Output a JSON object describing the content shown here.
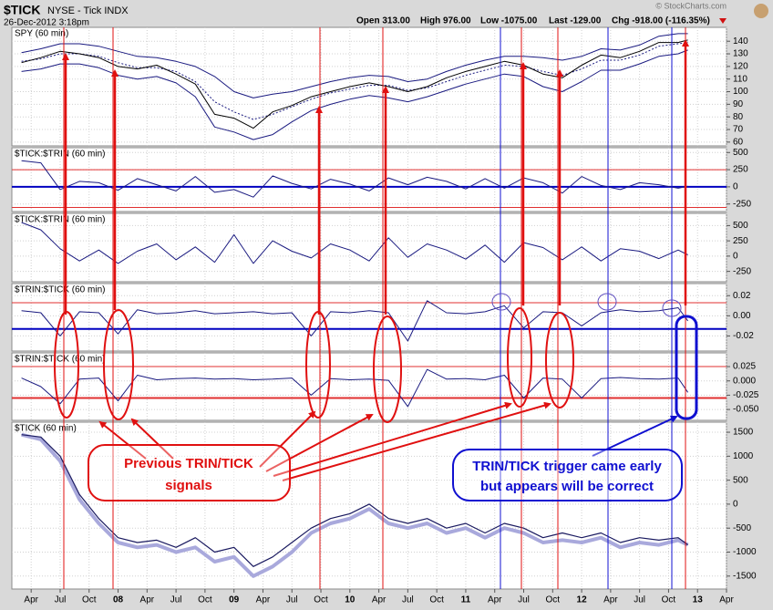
{
  "header": {
    "symbol": "$TICK",
    "name": "NYSE - Tick INDX",
    "date": "26-Dec-2012 3:18pm",
    "open": "Open 313.00",
    "high": "High 976.00",
    "low": "Low -1075.00",
    "last": "Last -129.00",
    "chg": "Chg -918.00 (-116.35%)",
    "credit": "© StockCharts.com"
  },
  "annotations": {
    "left": [
      "Previous TRIN/TICK",
      "signals"
    ],
    "right": [
      "TRIN/TICK trigger came early",
      "but appears will be correct"
    ]
  },
  "chart_data": [
    {
      "type": "line",
      "title": "SPY (60 min)",
      "xlim": [
        "2007-02",
        "2013-04"
      ],
      "x": [
        "2007-03",
        "2007-05",
        "2007-07",
        "2007-09",
        "2007-11",
        "2008-01",
        "2008-03",
        "2008-05",
        "2008-07",
        "2008-09",
        "2008-11",
        "2009-01",
        "2009-03",
        "2009-05",
        "2009-07",
        "2009-09",
        "2009-11",
        "2010-01",
        "2010-03",
        "2010-05",
        "2010-07",
        "2010-09",
        "2010-11",
        "2011-01",
        "2011-03",
        "2011-05",
        "2011-07",
        "2011-09",
        "2011-11",
        "2012-01",
        "2012-03",
        "2012-05",
        "2012-07",
        "2012-09",
        "2012-11",
        "2012-12"
      ],
      "ylim": [
        57,
        151
      ],
      "yticks": [
        140,
        130,
        120,
        110,
        100,
        90,
        80,
        70,
        60
      ],
      "series": [
        {
          "color": "#1a1a80",
          "values": [
            131,
            134,
            138,
            138,
            136,
            132,
            128,
            127,
            124,
            120,
            112,
            100,
            95,
            98,
            100,
            104,
            108,
            111,
            113,
            112,
            108,
            110,
            116,
            121,
            125,
            128,
            128,
            127,
            125,
            128,
            134,
            133,
            137,
            144,
            146,
            146
          ]
        },
        {
          "color": "#1a1a80",
          "values": [
            116,
            118,
            122,
            122,
            119,
            113,
            110,
            112,
            107,
            96,
            72,
            68,
            62,
            66,
            76,
            85,
            90,
            94,
            97,
            95,
            92,
            96,
            101,
            106,
            110,
            114,
            112,
            104,
            100,
            108,
            117,
            117,
            122,
            128,
            130,
            133
          ]
        },
        {
          "color": "#1a1a80",
          "dash": true,
          "values": [
            124,
            126,
            130,
            130,
            128,
            123,
            119,
            119,
            116,
            108,
            92,
            84,
            78,
            82,
            88,
            94,
            99,
            102,
            105,
            105,
            101,
            103,
            108,
            113,
            117,
            121,
            120,
            116,
            113,
            118,
            125,
            125,
            129,
            136,
            138,
            139
          ]
        },
        {
          "color": "#000000",
          "values": [
            123,
            127,
            132,
            130,
            127,
            120,
            118,
            121,
            114,
            106,
            82,
            79,
            71,
            84,
            89,
            96,
            100,
            104,
            107,
            104,
            100,
            104,
            111,
            116,
            120,
            124,
            121,
            114,
            111,
            121,
            129,
            127,
            132,
            139,
            139,
            141
          ]
        }
      ]
    },
    {
      "type": "line",
      "title": "$TICK:$TRIN (60 min)",
      "xlim": [
        "2007-02",
        "2013-04"
      ],
      "x": [
        "2007-03",
        "2007-05",
        "2007-07",
        "2007-09",
        "2007-11",
        "2008-01",
        "2008-03",
        "2008-05",
        "2008-07",
        "2008-09",
        "2008-11",
        "2009-01",
        "2009-03",
        "2009-05",
        "2009-07",
        "2009-09",
        "2009-11",
        "2010-01",
        "2010-03",
        "2010-05",
        "2010-07",
        "2010-09",
        "2010-11",
        "2011-01",
        "2011-03",
        "2011-05",
        "2011-07",
        "2011-09",
        "2011-11",
        "2012-01",
        "2012-03",
        "2012-05",
        "2012-07",
        "2012-09",
        "2012-11",
        "2012-12"
      ],
      "ylim": [
        -360,
        570
      ],
      "yticks": [
        500,
        250,
        0,
        -250
      ],
      "hlines": [
        {
          "value": 250,
          "color": "#e03030",
          "width": 1
        },
        {
          "value": 0,
          "color": "#0000c0",
          "width": 2
        },
        {
          "value": -300,
          "color": "#e03030",
          "width": 1
        }
      ],
      "series": [
        {
          "color": "#1a1a80",
          "values": [
            380,
            350,
            -40,
            80,
            60,
            -50,
            120,
            30,
            -60,
            150,
            -80,
            -40,
            -150,
            160,
            50,
            -30,
            110,
            40,
            -60,
            130,
            30,
            140,
            80,
            -30,
            120,
            -20,
            130,
            60,
            -90,
            150,
            20,
            -40,
            60,
            30,
            -20,
            10
          ]
        }
      ]
    },
    {
      "type": "line",
      "title": "$TICK:$TRIN (60 min)",
      "xlim": [
        "2007-02",
        "2013-04"
      ],
      "x": [
        "2007-03",
        "2007-05",
        "2007-07",
        "2007-09",
        "2007-11",
        "2008-01",
        "2008-03",
        "2008-05",
        "2008-07",
        "2008-09",
        "2008-11",
        "2009-01",
        "2009-03",
        "2009-05",
        "2009-07",
        "2009-09",
        "2009-11",
        "2010-01",
        "2010-03",
        "2010-05",
        "2010-07",
        "2010-09",
        "2010-11",
        "2011-01",
        "2011-03",
        "2011-05",
        "2011-07",
        "2011-09",
        "2011-11",
        "2012-01",
        "2012-03",
        "2012-05",
        "2012-07",
        "2012-09",
        "2012-11",
        "2012-12"
      ],
      "ylim": [
        -420,
        700
      ],
      "yticks": [
        500,
        250,
        0,
        -250
      ],
      "series": [
        {
          "color": "#1a1a80",
          "values": [
            550,
            430,
            120,
            -80,
            100,
            -120,
            80,
            200,
            -60,
            150,
            -100,
            350,
            -120,
            250,
            80,
            -30,
            200,
            100,
            -80,
            300,
            -20,
            200,
            100,
            -50,
            180,
            -100,
            220,
            140,
            -60,
            150,
            -80,
            120,
            80,
            -40,
            100,
            20
          ]
        }
      ]
    },
    {
      "type": "line",
      "title": "$TRIN:$TICK (60 min)",
      "xlim": [
        "2007-02",
        "2013-04"
      ],
      "x": [
        "2007-03",
        "2007-05",
        "2007-07",
        "2007-09",
        "2007-11",
        "2008-01",
        "2008-03",
        "2008-05",
        "2008-07",
        "2008-09",
        "2008-11",
        "2009-01",
        "2009-03",
        "2009-05",
        "2009-07",
        "2009-09",
        "2009-11",
        "2010-01",
        "2010-03",
        "2010-05",
        "2010-07",
        "2010-09",
        "2010-11",
        "2011-01",
        "2011-03",
        "2011-05",
        "2011-07",
        "2011-09",
        "2011-11",
        "2012-01",
        "2012-03",
        "2012-05",
        "2012-07",
        "2012-09",
        "2012-11",
        "2012-12"
      ],
      "ylim": [
        -0.035,
        0.032
      ],
      "yticks": [
        0.02,
        {
          "value": 0,
          "label": "0.00"
        },
        -0.02
      ],
      "hlines": [
        {
          "value": 0.013,
          "color": "#e03030",
          "width": 1
        },
        {
          "value": -0.013,
          "color": "#0000c0",
          "width": 2
        }
      ],
      "series": [
        {
          "color": "#1a1a80",
          "values": [
            0.005,
            0.003,
            -0.02,
            0.004,
            0.003,
            -0.018,
            0.006,
            0.002,
            0.003,
            0.005,
            0.002,
            0.003,
            0.004,
            0.002,
            0.003,
            -0.02,
            0.004,
            0.003,
            0.005,
            0.003,
            -0.025,
            0.015,
            0.003,
            0.002,
            0.004,
            0.01,
            -0.012,
            0.004,
            0.003,
            -0.01,
            0.003,
            0.006,
            0.004,
            0.005,
            0.008,
            -0.005
          ]
        }
      ]
    },
    {
      "type": "line",
      "title": "$TRIN:$TICK (60 min)",
      "xlim": [
        "2007-02",
        "2013-04"
      ],
      "x": [
        "2007-03",
        "2007-05",
        "2007-07",
        "2007-09",
        "2007-11",
        "2008-01",
        "2008-03",
        "2008-05",
        "2008-07",
        "2008-09",
        "2008-11",
        "2009-01",
        "2009-03",
        "2009-05",
        "2009-07",
        "2009-09",
        "2009-11",
        "2010-01",
        "2010-03",
        "2010-05",
        "2010-07",
        "2010-09",
        "2010-11",
        "2011-01",
        "2011-03",
        "2011-05",
        "2011-07",
        "2011-09",
        "2011-11",
        "2012-01",
        "2012-03",
        "2012-05",
        "2012-07",
        "2012-09",
        "2012-11",
        "2012-12"
      ],
      "ylim": [
        -0.069,
        0.049
      ],
      "yticks": [
        0.025,
        {
          "value": 0,
          "label": "0.000"
        },
        -0.025,
        {
          "value": -0.05,
          "label": "-0.050"
        }
      ],
      "hlines": [
        {
          "value": 0.025,
          "color": "#e03030",
          "width": 1
        },
        {
          "value": -0.03,
          "color": "#e03030",
          "width": 2
        }
      ],
      "series": [
        {
          "color": "#1a1a80",
          "values": [
            0.005,
            -0.01,
            -0.04,
            0.003,
            0.005,
            -0.035,
            0.01,
            0.002,
            0.004,
            0.005,
            0.003,
            0.004,
            0.002,
            0.003,
            0.005,
            -0.025,
            0.004,
            0.002,
            0.003,
            0.001,
            -0.045,
            0.02,
            0.003,
            0.004,
            0.002,
            0.01,
            -0.03,
            0.005,
            0.003,
            -0.03,
            0.004,
            0.006,
            0.004,
            0.003,
            0.005,
            -0.02
          ]
        }
      ]
    },
    {
      "type": "line",
      "title": "$TICK (60 min)",
      "xlim": [
        "2007-02",
        "2013-04"
      ],
      "x": [
        "2007-03",
        "2007-05",
        "2007-07",
        "2007-09",
        "2007-11",
        "2008-01",
        "2008-03",
        "2008-05",
        "2008-07",
        "2008-09",
        "2008-11",
        "2009-01",
        "2009-03",
        "2009-05",
        "2009-07",
        "2009-09",
        "2009-11",
        "2010-01",
        "2010-03",
        "2010-05",
        "2010-07",
        "2010-09",
        "2010-11",
        "2011-01",
        "2011-03",
        "2011-05",
        "2011-07",
        "2011-09",
        "2011-11",
        "2012-01",
        "2012-03",
        "2012-05",
        "2012-07",
        "2012-09",
        "2012-11",
        "2012-12"
      ],
      "ylim": [
        -1770,
        1710
      ],
      "yticks": [
        1500,
        1000,
        500,
        0,
        -500,
        -1000,
        -1500
      ],
      "xticks": [
        {
          "value": "2007-04",
          "label": "Apr"
        },
        {
          "value": "2007-07",
          "label": "Jul"
        },
        {
          "value": "2007-10",
          "label": "Oct"
        },
        {
          "value": "2008-01",
          "label": "08"
        },
        {
          "value": "2008-04",
          "label": "Apr"
        },
        {
          "value": "2008-07",
          "label": "Jul"
        },
        {
          "value": "2008-10",
          "label": "Oct"
        },
        {
          "value": "2009-01",
          "label": "09"
        },
        {
          "value": "2009-04",
          "label": "Apr"
        },
        {
          "value": "2009-07",
          "label": "Jul"
        },
        {
          "value": "2009-10",
          "label": "Oct"
        },
        {
          "value": "2010-01",
          "label": "10"
        },
        {
          "value": "2010-04",
          "label": "Apr"
        },
        {
          "value": "2010-07",
          "label": "Jul"
        },
        {
          "value": "2010-10",
          "label": "Oct"
        },
        {
          "value": "2011-01",
          "label": "11"
        },
        {
          "value": "2011-04",
          "label": "Apr"
        },
        {
          "value": "2011-07",
          "label": "Jul"
        },
        {
          "value": "2011-10",
          "label": "Oct"
        },
        {
          "value": "2012-01",
          "label": "12"
        },
        {
          "value": "2012-04",
          "label": "Apr"
        },
        {
          "value": "2012-07",
          "label": "Jul"
        },
        {
          "value": "2012-10",
          "label": "Oct"
        },
        {
          "value": "2013-01",
          "label": "13"
        },
        {
          "value": "2013-04",
          "label": "Apr"
        }
      ],
      "series": [
        {
          "color": "#a9a9dc",
          "width": 4,
          "values": [
            1450,
            1350,
            900,
            100,
            -400,
            -800,
            -900,
            -850,
            -1000,
            -900,
            -1200,
            -1100,
            -1500,
            -1300,
            -1000,
            -600,
            -400,
            -300,
            -100,
            -400,
            -500,
            -400,
            -600,
            -500,
            -700,
            -500,
            -600,
            -800,
            -750,
            -800,
            -700,
            -900,
            -800,
            -850,
            -750,
            -850
          ]
        },
        {
          "color": "#1a1a60",
          "width": 1.2,
          "values": [
            1450,
            1400,
            1000,
            200,
            -300,
            -700,
            -800,
            -750,
            -900,
            -700,
            -1000,
            -900,
            -1300,
            -1100,
            -800,
            -500,
            -300,
            -200,
            0,
            -300,
            -400,
            -300,
            -500,
            -400,
            -600,
            -400,
            -500,
            -700,
            -600,
            -700,
            -600,
            -800,
            -700,
            -750,
            -700,
            -850
          ]
        }
      ]
    }
  ]
}
